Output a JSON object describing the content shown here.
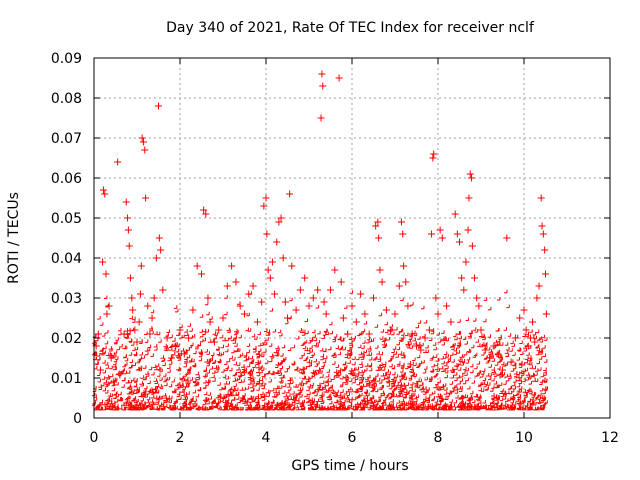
{
  "chart_data": {
    "type": "scatter",
    "title": "Day 340 of 2021, Rate Of TEC Index for receiver nclf",
    "xlabel": "GPS time / hours",
    "ylabel": "ROTI / TECUs",
    "xlim": [
      0,
      12
    ],
    "ylim": [
      0,
      0.09
    ],
    "x_ticks": [
      "0",
      "2",
      "4",
      "6",
      "8",
      "10",
      "12"
    ],
    "y_ticks": [
      "0",
      "0.01",
      "0.02",
      "0.03",
      "0.04",
      "0.05",
      "0.06",
      "0.07",
      "0.08",
      "0.09"
    ],
    "grid": true,
    "marker": "plus",
    "color": "#ff0000",
    "series": [
      {
        "name": "ROTI",
        "points": [
          [
            0.05,
            0.018
          ],
          [
            0.1,
            0.021
          ],
          [
            0.15,
            0.012
          ],
          [
            0.2,
            0.039
          ],
          [
            0.22,
            0.057
          ],
          [
            0.25,
            0.056
          ],
          [
            0.28,
            0.036
          ],
          [
            0.3,
            0.026
          ],
          [
            0.35,
            0.028
          ],
          [
            0.4,
            0.015
          ],
          [
            0.45,
            0.009
          ],
          [
            0.55,
            0.064
          ],
          [
            0.6,
            0.011
          ],
          [
            0.7,
            0.021
          ],
          [
            0.75,
            0.054
          ],
          [
            0.78,
            0.05
          ],
          [
            0.8,
            0.047
          ],
          [
            0.82,
            0.043
          ],
          [
            0.85,
            0.035
          ],
          [
            0.88,
            0.03
          ],
          [
            0.9,
            0.027
          ],
          [
            0.95,
            0.022
          ],
          [
            1.0,
            0.019
          ],
          [
            1.05,
            0.024
          ],
          [
            1.08,
            0.031
          ],
          [
            1.1,
            0.038
          ],
          [
            1.12,
            0.07
          ],
          [
            1.15,
            0.069
          ],
          [
            1.18,
            0.067
          ],
          [
            1.2,
            0.055
          ],
          [
            1.25,
            0.028
          ],
          [
            1.3,
            0.021
          ],
          [
            1.35,
            0.025
          ],
          [
            1.4,
            0.03
          ],
          [
            1.45,
            0.04
          ],
          [
            1.5,
            0.078
          ],
          [
            1.52,
            0.045
          ],
          [
            1.55,
            0.042
          ],
          [
            1.6,
            0.032
          ],
          [
            1.7,
            0.02
          ],
          [
            1.8,
            0.015
          ],
          [
            1.9,
            0.018
          ],
          [
            2.0,
            0.022
          ],
          [
            2.1,
            0.016
          ],
          [
            2.2,
            0.02
          ],
          [
            2.3,
            0.027
          ],
          [
            2.4,
            0.038
          ],
          [
            2.5,
            0.036
          ],
          [
            2.55,
            0.052
          ],
          [
            2.6,
            0.051
          ],
          [
            2.65,
            0.03
          ],
          [
            2.7,
            0.024
          ],
          [
            2.8,
            0.019
          ],
          [
            2.9,
            0.022
          ],
          [
            3.0,
            0.025
          ],
          [
            3.1,
            0.033
          ],
          [
            3.2,
            0.038
          ],
          [
            3.3,
            0.034
          ],
          [
            3.4,
            0.028
          ],
          [
            3.5,
            0.026
          ],
          [
            3.6,
            0.031
          ],
          [
            3.7,
            0.033
          ],
          [
            3.8,
            0.024
          ],
          [
            3.9,
            0.029
          ],
          [
            3.95,
            0.053
          ],
          [
            4.0,
            0.055
          ],
          [
            4.02,
            0.046
          ],
          [
            4.05,
            0.037
          ],
          [
            4.1,
            0.035
          ],
          [
            4.15,
            0.039
          ],
          [
            4.2,
            0.031
          ],
          [
            4.25,
            0.044
          ],
          [
            4.3,
            0.049
          ],
          [
            4.35,
            0.05
          ],
          [
            4.4,
            0.04
          ],
          [
            4.45,
            0.029
          ],
          [
            4.5,
            0.025
          ],
          [
            4.55,
            0.056
          ],
          [
            4.6,
            0.038
          ],
          [
            4.7,
            0.027
          ],
          [
            4.8,
            0.032
          ],
          [
            4.9,
            0.035
          ],
          [
            5.0,
            0.028
          ],
          [
            5.1,
            0.03
          ],
          [
            5.2,
            0.032
          ],
          [
            5.28,
            0.075
          ],
          [
            5.3,
            0.086
          ],
          [
            5.32,
            0.083
          ],
          [
            5.35,
            0.029
          ],
          [
            5.4,
            0.026
          ],
          [
            5.5,
            0.032
          ],
          [
            5.6,
            0.037
          ],
          [
            5.7,
            0.085
          ],
          [
            5.75,
            0.034
          ],
          [
            5.8,
            0.025
          ],
          [
            5.9,
            0.021
          ],
          [
            6.0,
            0.028
          ],
          [
            6.1,
            0.024
          ],
          [
            6.2,
            0.031
          ],
          [
            6.3,
            0.026
          ],
          [
            6.4,
            0.021
          ],
          [
            6.5,
            0.03
          ],
          [
            6.55,
            0.048
          ],
          [
            6.6,
            0.049
          ],
          [
            6.62,
            0.045
          ],
          [
            6.65,
            0.037
          ],
          [
            6.7,
            0.034
          ],
          [
            6.8,
            0.027
          ],
          [
            6.9,
            0.022
          ],
          [
            7.0,
            0.026
          ],
          [
            7.1,
            0.033
          ],
          [
            7.15,
            0.049
          ],
          [
            7.18,
            0.046
          ],
          [
            7.2,
            0.038
          ],
          [
            7.25,
            0.034
          ],
          [
            7.3,
            0.028
          ],
          [
            7.4,
            0.021
          ],
          [
            7.5,
            0.018
          ],
          [
            7.6,
            0.017
          ],
          [
            7.7,
            0.02
          ],
          [
            7.8,
            0.022
          ],
          [
            7.85,
            0.046
          ],
          [
            7.88,
            0.065
          ],
          [
            7.9,
            0.066
          ],
          [
            7.95,
            0.03
          ],
          [
            8.0,
            0.026
          ],
          [
            8.05,
            0.047
          ],
          [
            8.1,
            0.045
          ],
          [
            8.2,
            0.028
          ],
          [
            8.3,
            0.024
          ],
          [
            8.4,
            0.051
          ],
          [
            8.45,
            0.046
          ],
          [
            8.5,
            0.044
          ],
          [
            8.55,
            0.035
          ],
          [
            8.6,
            0.032
          ],
          [
            8.65,
            0.039
          ],
          [
            8.7,
            0.047
          ],
          [
            8.72,
            0.055
          ],
          [
            8.75,
            0.061
          ],
          [
            8.78,
            0.06
          ],
          [
            8.8,
            0.043
          ],
          [
            8.85,
            0.035
          ],
          [
            8.9,
            0.03
          ],
          [
            8.95,
            0.028
          ],
          [
            9.0,
            0.022
          ],
          [
            9.1,
            0.017
          ],
          [
            9.2,
            0.015
          ],
          [
            9.3,
            0.018
          ],
          [
            9.4,
            0.016
          ],
          [
            9.5,
            0.012
          ],
          [
            9.6,
            0.045
          ],
          [
            9.7,
            0.014
          ],
          [
            9.8,
            0.02
          ],
          [
            9.9,
            0.025
          ],
          [
            10.0,
            0.027
          ],
          [
            10.05,
            0.022
          ],
          [
            10.1,
            0.018
          ],
          [
            10.15,
            0.02
          ],
          [
            10.2,
            0.024
          ],
          [
            10.25,
            0.019
          ],
          [
            10.3,
            0.03
          ],
          [
            10.35,
            0.033
          ],
          [
            10.4,
            0.055
          ],
          [
            10.42,
            0.048
          ],
          [
            10.45,
            0.046
          ],
          [
            10.48,
            0.042
          ],
          [
            10.5,
            0.036
          ],
          [
            10.52,
            0.026
          ]
        ]
      }
    ]
  }
}
